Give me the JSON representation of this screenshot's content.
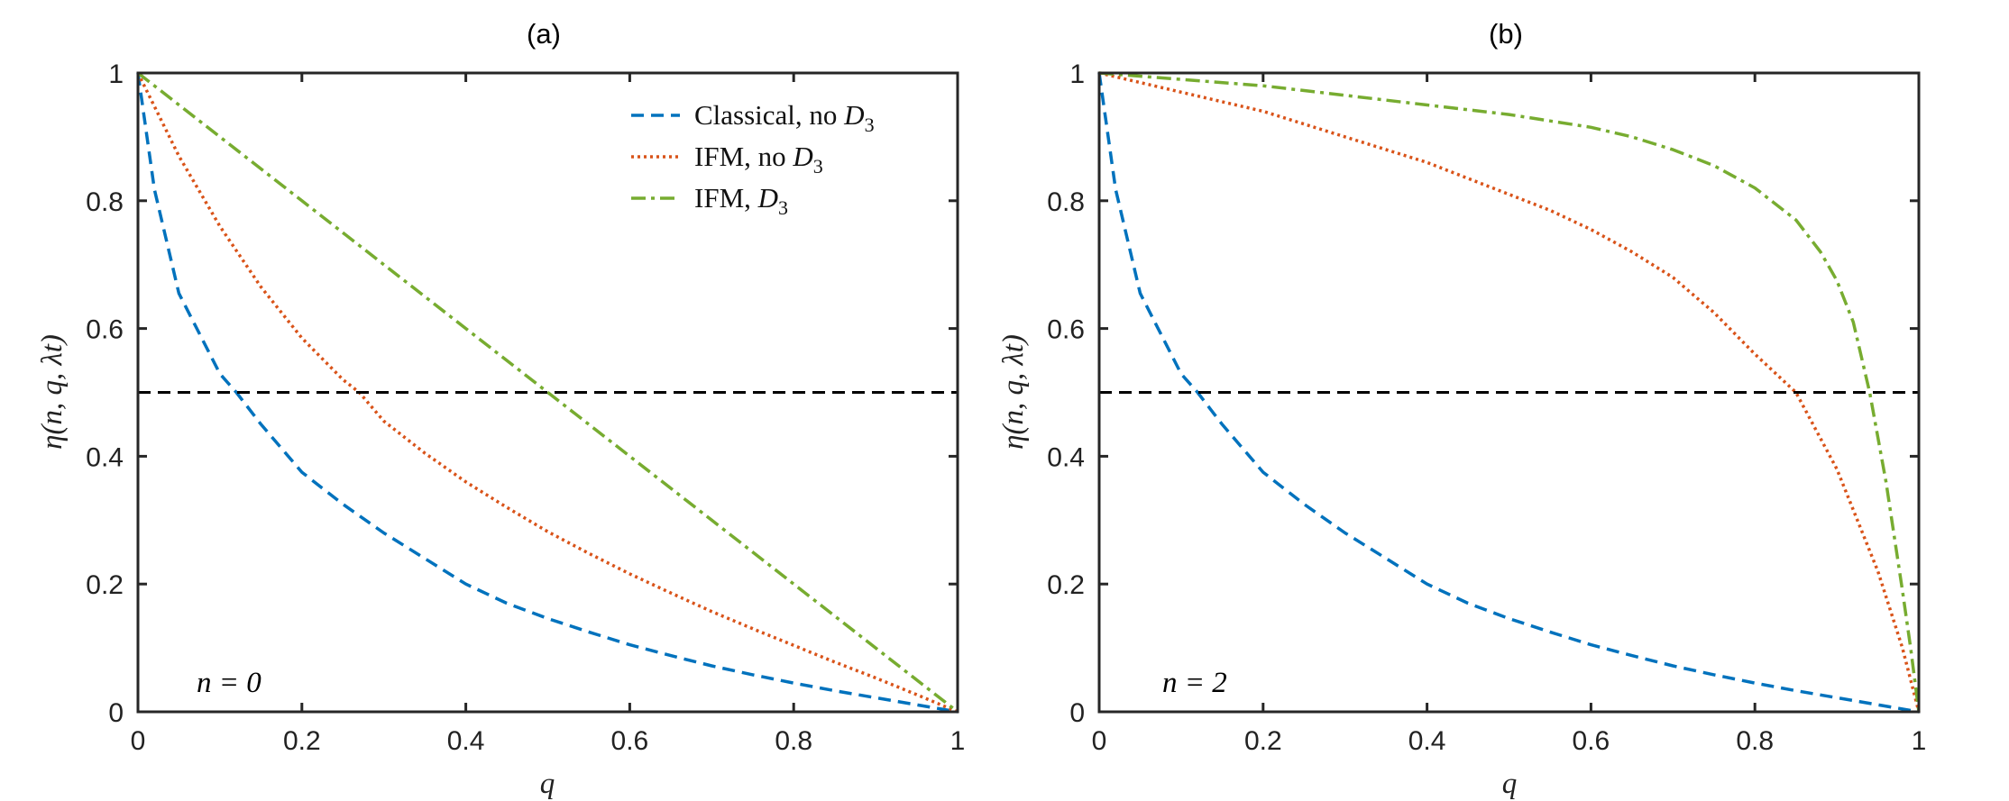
{
  "figure": {
    "panels": [
      {
        "title": "(a)",
        "annotation": "n = 0",
        "xlabel": "q",
        "ylabel": "η(n, q, λt)",
        "xticks": [
          "0",
          "0.2",
          "0.4",
          "0.6",
          "0.8",
          "1"
        ],
        "yticks": [
          "0",
          "0.2",
          "0.4",
          "0.6",
          "0.8",
          "1"
        ]
      },
      {
        "title": "(b)",
        "annotation": "n = 2",
        "xlabel": "q",
        "ylabel": "η(n, q, λt)",
        "xticks": [
          "0",
          "0.2",
          "0.4",
          "0.6",
          "0.8",
          "1"
        ],
        "yticks": [
          "0",
          "0.2",
          "0.4",
          "0.6",
          "0.8",
          "1"
        ]
      }
    ],
    "legend": {
      "items": [
        {
          "name": "Classical, no ",
          "sub": "D",
          "subscript": "3"
        },
        {
          "name": "IFM, no ",
          "sub": "D",
          "subscript": "3"
        },
        {
          "name": "IFM, ",
          "sub": "D",
          "subscript": "3"
        }
      ]
    }
  },
  "chart_data": [
    {
      "type": "line",
      "title": "(a)",
      "xlabel": "q",
      "ylabel": "η(n, q, λt)",
      "xlim": [
        0,
        1
      ],
      "ylim": [
        0,
        1
      ],
      "annotation": "n = 0",
      "legend_position": "top-right",
      "grid": false,
      "series": [
        {
          "name": "Classical, no D3",
          "color": "#0072BD",
          "style": "dashed",
          "x": [
            0,
            0.02,
            0.05,
            0.1,
            0.12,
            0.15,
            0.2,
            0.25,
            0.3,
            0.35,
            0.4,
            0.45,
            0.5,
            0.55,
            0.6,
            0.65,
            0.7,
            0.75,
            0.8,
            0.85,
            0.9,
            0.95,
            1.0
          ],
          "y": [
            1.0,
            0.818,
            0.655,
            0.529,
            0.5,
            0.45,
            0.375,
            0.325,
            0.28,
            0.24,
            0.2,
            0.17,
            0.146,
            0.125,
            0.105,
            0.088,
            0.072,
            0.058,
            0.045,
            0.033,
            0.022,
            0.011,
            0.0
          ]
        },
        {
          "name": "IFM, no D3",
          "color": "#D95319",
          "style": "dotted",
          "x": [
            0,
            0.05,
            0.1,
            0.15,
            0.2,
            0.25,
            0.27,
            0.3,
            0.35,
            0.4,
            0.45,
            0.5,
            0.55,
            0.6,
            0.65,
            0.7,
            0.75,
            0.8,
            0.85,
            0.9,
            0.95,
            1.0
          ],
          "y": [
            1.0,
            0.87,
            0.76,
            0.665,
            0.585,
            0.52,
            0.5,
            0.455,
            0.405,
            0.36,
            0.32,
            0.282,
            0.248,
            0.216,
            0.186,
            0.157,
            0.13,
            0.104,
            0.078,
            0.053,
            0.027,
            0.0
          ]
        },
        {
          "name": "IFM, D3",
          "color": "#77AC30",
          "style": "dashdot",
          "x": [
            0,
            0.1,
            0.2,
            0.3,
            0.4,
            0.5,
            0.6,
            0.7,
            0.8,
            0.9,
            1.0
          ],
          "y": [
            1.0,
            0.9,
            0.8,
            0.7,
            0.6,
            0.5,
            0.4,
            0.3,
            0.2,
            0.1,
            0.0
          ]
        },
        {
          "name": "threshold",
          "color": "#000000",
          "style": "dashed",
          "x": [
            0,
            1
          ],
          "y": [
            0.5,
            0.5
          ]
        }
      ]
    },
    {
      "type": "line",
      "title": "(b)",
      "xlabel": "q",
      "ylabel": "η(n, q, λt)",
      "xlim": [
        0,
        1
      ],
      "ylim": [
        0,
        1
      ],
      "annotation": "n = 2",
      "grid": false,
      "series": [
        {
          "name": "Classical, no D3",
          "color": "#0072BD",
          "style": "dashed",
          "x": [
            0,
            0.02,
            0.05,
            0.1,
            0.12,
            0.15,
            0.2,
            0.25,
            0.3,
            0.35,
            0.4,
            0.45,
            0.5,
            0.55,
            0.6,
            0.65,
            0.7,
            0.75,
            0.8,
            0.85,
            0.9,
            0.95,
            1.0
          ],
          "y": [
            1.0,
            0.818,
            0.655,
            0.529,
            0.5,
            0.45,
            0.375,
            0.325,
            0.28,
            0.24,
            0.2,
            0.17,
            0.146,
            0.125,
            0.105,
            0.088,
            0.072,
            0.058,
            0.045,
            0.033,
            0.022,
            0.011,
            0.0
          ]
        },
        {
          "name": "IFM, no D3",
          "color": "#D95319",
          "style": "dotted",
          "x": [
            0,
            0.05,
            0.1,
            0.15,
            0.2,
            0.25,
            0.3,
            0.35,
            0.4,
            0.45,
            0.5,
            0.55,
            0.6,
            0.65,
            0.7,
            0.75,
            0.8,
            0.85,
            0.9,
            0.95,
            0.98,
            1.0
          ],
          "y": [
            1.0,
            0.985,
            0.97,
            0.955,
            0.94,
            0.92,
            0.9,
            0.88,
            0.86,
            0.835,
            0.81,
            0.785,
            0.755,
            0.72,
            0.68,
            0.625,
            0.56,
            0.5,
            0.38,
            0.22,
            0.1,
            0.0
          ]
        },
        {
          "name": "IFM, D3",
          "color": "#77AC30",
          "style": "dashdot",
          "x": [
            0,
            0.1,
            0.2,
            0.3,
            0.4,
            0.5,
            0.6,
            0.65,
            0.7,
            0.75,
            0.8,
            0.85,
            0.88,
            0.9,
            0.92,
            0.94,
            0.96,
            0.98,
            0.99,
            1.0
          ],
          "y": [
            1.0,
            0.99,
            0.98,
            0.965,
            0.95,
            0.935,
            0.915,
            0.9,
            0.88,
            0.855,
            0.82,
            0.77,
            0.72,
            0.675,
            0.61,
            0.5,
            0.36,
            0.19,
            0.1,
            0.0
          ]
        },
        {
          "name": "threshold",
          "color": "#000000",
          "style": "dashed",
          "x": [
            0,
            1
          ],
          "y": [
            0.5,
            0.5
          ]
        }
      ]
    }
  ]
}
